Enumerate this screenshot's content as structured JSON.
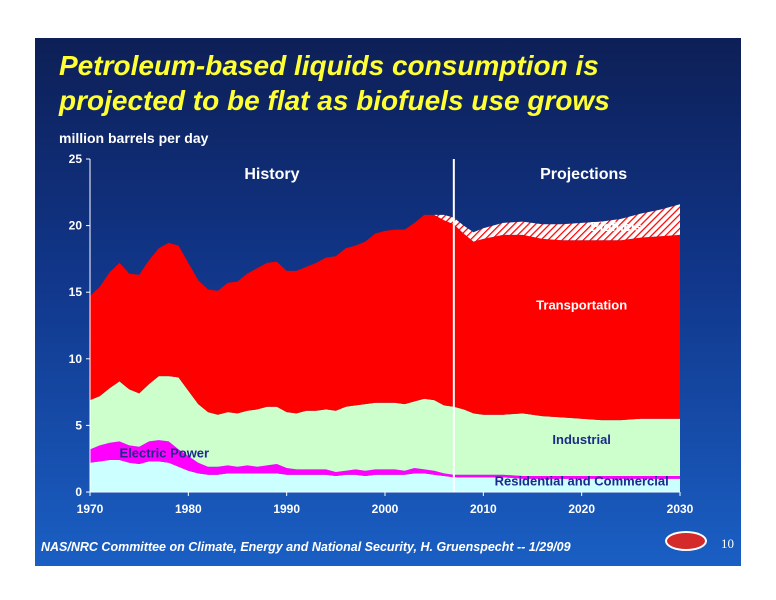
{
  "title_lines": [
    "Petroleum-based liquids consumption is",
    "projected to be flat as biofuels use grows"
  ],
  "unit_label": "million barrels per day",
  "footer": "NAS/NRC Committee on Climate, Energy and National Security, H. Gruenspecht -- 1/29/09",
  "page_number": "10",
  "logo_text": "eia",
  "colors": {
    "residential": "#ccffff",
    "electric": "#ff00ff",
    "industrial": "#ccffcc",
    "transportation": "#ff0000",
    "biofuels_hatch": "#ff0000",
    "title": "#ffff33"
  },
  "chart_data": {
    "type": "area",
    "stacked": true,
    "xlim": [
      1970,
      2030
    ],
    "ylim": [
      0,
      25
    ],
    "x_ticks": [
      "1970",
      "1980",
      "1990",
      "2000",
      "2010",
      "2020",
      "2030"
    ],
    "y_ticks": [
      "0",
      "5",
      "10",
      "15",
      "20",
      "25"
    ],
    "divider_year": 2007,
    "history_label": "History",
    "projections_label": "Projections",
    "x": [
      1970,
      1971,
      1972,
      1973,
      1974,
      1975,
      1976,
      1977,
      1978,
      1979,
      1980,
      1981,
      1982,
      1983,
      1984,
      1985,
      1986,
      1987,
      1988,
      1989,
      1990,
      1991,
      1992,
      1993,
      1994,
      1995,
      1996,
      1997,
      1998,
      1999,
      2000,
      2001,
      2002,
      2003,
      2004,
      2005,
      2006,
      2007,
      2008,
      2009,
      2010,
      2012,
      2014,
      2016,
      2018,
      2020,
      2022,
      2024,
      2026,
      2028,
      2030
    ],
    "series": [
      {
        "name": "Residential and Commercial",
        "label_x": 2020,
        "label_y": 0.5,
        "values": [
          2.2,
          2.3,
          2.4,
          2.4,
          2.2,
          2.1,
          2.3,
          2.3,
          2.2,
          1.9,
          1.6,
          1.4,
          1.3,
          1.3,
          1.4,
          1.4,
          1.4,
          1.4,
          1.4,
          1.4,
          1.3,
          1.3,
          1.3,
          1.3,
          1.3,
          1.2,
          1.3,
          1.3,
          1.2,
          1.3,
          1.3,
          1.3,
          1.3,
          1.4,
          1.4,
          1.3,
          1.2,
          1.1,
          1.1,
          1.1,
          1.1,
          1.1,
          1.0,
          1.0,
          1.0,
          1.0,
          1.0,
          1.0,
          1.0,
          1.0,
          1.0
        ]
      },
      {
        "name": "Electric Power",
        "label_x": 1973,
        "label_y": 2.6,
        "values": [
          1.0,
          1.2,
          1.3,
          1.4,
          1.3,
          1.3,
          1.5,
          1.6,
          1.6,
          1.3,
          1.1,
          0.8,
          0.6,
          0.6,
          0.6,
          0.5,
          0.6,
          0.5,
          0.6,
          0.7,
          0.5,
          0.4,
          0.4,
          0.4,
          0.4,
          0.3,
          0.3,
          0.4,
          0.4,
          0.4,
          0.4,
          0.4,
          0.3,
          0.4,
          0.3,
          0.3,
          0.2,
          0.2,
          0.2,
          0.2,
          0.2,
          0.2,
          0.2,
          0.2,
          0.2,
          0.2,
          0.2,
          0.2,
          0.2,
          0.2,
          0.2
        ]
      },
      {
        "name": "Industrial",
        "label_x": 2020,
        "label_y": 3.6,
        "values": [
          3.7,
          3.7,
          4.1,
          4.5,
          4.2,
          4.0,
          4.3,
          4.8,
          4.9,
          5.4,
          4.9,
          4.4,
          4.1,
          3.9,
          4.0,
          4.0,
          4.1,
          4.3,
          4.4,
          4.3,
          4.2,
          4.2,
          4.4,
          4.4,
          4.5,
          4.6,
          4.8,
          4.8,
          5.0,
          5.0,
          5.0,
          5.0,
          5.0,
          5.0,
          5.3,
          5.3,
          5.1,
          5.1,
          4.9,
          4.6,
          4.5,
          4.5,
          4.7,
          4.5,
          4.4,
          4.3,
          4.2,
          4.2,
          4.3,
          4.3,
          4.3
        ]
      },
      {
        "name": "Transportation",
        "label_x": 2020,
        "label_y": 13.7,
        "values": [
          7.8,
          8.2,
          8.7,
          8.9,
          8.7,
          8.9,
          9.3,
          9.6,
          10.0,
          9.9,
          9.6,
          9.3,
          9.2,
          9.3,
          9.7,
          9.9,
          10.3,
          10.6,
          10.8,
          10.9,
          10.6,
          10.7,
          10.8,
          11.1,
          11.4,
          11.6,
          11.9,
          12.0,
          12.2,
          12.7,
          12.9,
          13.0,
          13.1,
          13.4,
          13.8,
          13.9,
          13.9,
          13.7,
          13.2,
          12.9,
          13.2,
          13.5,
          13.4,
          13.3,
          13.3,
          13.4,
          13.5,
          13.5,
          13.6,
          13.7,
          13.8
        ]
      },
      {
        "name": "Biofuels",
        "label_x": 2023.5,
        "label_y": 19.6,
        "hatched": true,
        "values": [
          0,
          0,
          0,
          0,
          0,
          0,
          0,
          0,
          0,
          0,
          0,
          0,
          0,
          0,
          0,
          0,
          0,
          0,
          0,
          0,
          0,
          0,
          0,
          0,
          0,
          0,
          0,
          0,
          0,
          0,
          0,
          0,
          0,
          0,
          0,
          0,
          0.4,
          0.5,
          0.6,
          0.7,
          0.8,
          0.9,
          1.0,
          1.1,
          1.2,
          1.3,
          1.4,
          1.6,
          1.8,
          2.0,
          2.3
        ]
      }
    ]
  }
}
